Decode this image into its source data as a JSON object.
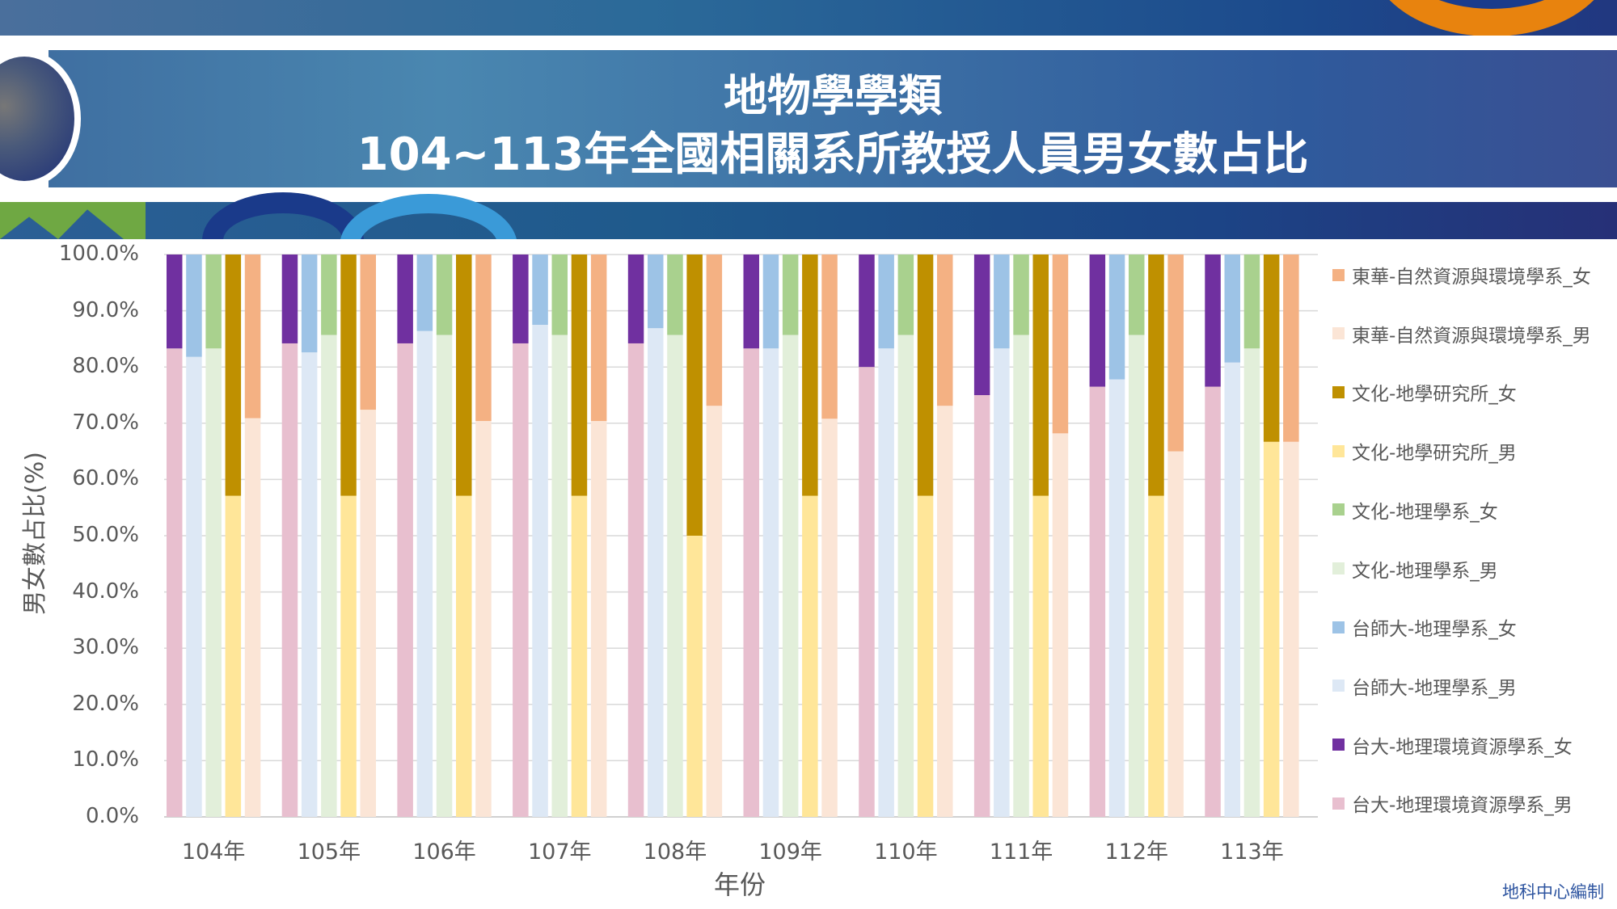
{
  "banner": {
    "title_line1": "地物學學類",
    "title_line2": "104~113年全國相關系所教授人員男女數占比"
  },
  "credit": "地科中心編制",
  "chart_data": {
    "type": "bar",
    "stacked": "percent",
    "title": "地物學學類 104~113年全國相關系所教授人員男女數占比",
    "xlabel": "年份",
    "ylabel": "男女數占比(%)",
    "ylim": [
      0,
      100
    ],
    "yticks": [
      "0.0%",
      "10.0%",
      "20.0%",
      "30.0%",
      "40.0%",
      "50.0%",
      "60.0%",
      "70.0%",
      "80.0%",
      "90.0%",
      "100.0%"
    ],
    "grid": true,
    "legend_position": "right",
    "categories": [
      "104年",
      "105年",
      "106年",
      "107年",
      "108年",
      "109年",
      "110年",
      "111年",
      "112年",
      "113年"
    ],
    "groups": [
      {
        "name": "台大-地理環境資源學系",
        "series": [
          {
            "name": "台大-地理環境資源學系_男",
            "color": "#e8bfcf",
            "values": [
              83.3,
              84.2,
              84.2,
              84.2,
              84.2,
              83.3,
              80.0,
              75.0,
              76.5,
              76.5
            ]
          },
          {
            "name": "台大-地理環境資源學系_女",
            "color": "#7030a0",
            "values": [
              16.7,
              15.8,
              15.8,
              15.8,
              15.8,
              16.7,
              20.0,
              25.0,
              23.5,
              23.5
            ]
          }
        ]
      },
      {
        "name": "台師大-地理學系",
        "series": [
          {
            "name": "台師大-地理學系_男",
            "color": "#dde8f5",
            "values": [
              81.8,
              82.6,
              86.4,
              87.5,
              86.9,
              83.3,
              83.3,
              83.3,
              77.8,
              80.8
            ]
          },
          {
            "name": "台師大-地理學系_女",
            "color": "#9dc3e6",
            "values": [
              18.2,
              17.4,
              13.6,
              12.5,
              13.1,
              16.7,
              16.7,
              16.7,
              22.2,
              19.2
            ]
          }
        ]
      },
      {
        "name": "文化-地理學系",
        "series": [
          {
            "name": "文化-地理學系_男",
            "color": "#e2efda",
            "values": [
              83.3,
              85.7,
              85.7,
              85.7,
              85.7,
              85.7,
              85.7,
              85.7,
              85.7,
              83.3
            ]
          },
          {
            "name": "文化-地理學系_女",
            "color": "#a9d18e",
            "values": [
              16.7,
              14.3,
              14.3,
              14.3,
              14.3,
              14.3,
              14.3,
              14.3,
              14.3,
              16.7
            ]
          }
        ]
      },
      {
        "name": "文化-地學研究所",
        "series": [
          {
            "name": "文化-地學研究所_男",
            "color": "#ffe699",
            "values": [
              57.1,
              57.1,
              57.1,
              57.1,
              50.0,
              57.1,
              57.1,
              57.1,
              57.1,
              66.7
            ]
          },
          {
            "name": "文化-地學研究所_女",
            "color": "#bf9000",
            "values": [
              42.9,
              42.9,
              42.9,
              42.9,
              50.0,
              42.9,
              42.9,
              42.9,
              42.9,
              33.3
            ]
          }
        ]
      },
      {
        "name": "東華-自然資源與環境學系",
        "series": [
          {
            "name": "東華-自然資源與環境學系_男",
            "color": "#fbe5d6",
            "values": [
              70.9,
              72.4,
              70.4,
              70.4,
              73.1,
              70.8,
              73.1,
              68.2,
              65.0,
              66.7
            ]
          },
          {
            "name": "東華-自然資源與環境學系_女",
            "color": "#f4b183",
            "values": [
              29.1,
              27.6,
              29.6,
              29.6,
              26.9,
              29.2,
              26.9,
              31.8,
              35.0,
              33.3
            ]
          }
        ]
      }
    ],
    "legend": [
      {
        "label": "東華-自然資源與環境學系_女",
        "color": "#f4b183"
      },
      {
        "label": "東華-自然資源與環境學系_男",
        "color": "#fbe5d6"
      },
      {
        "label": "文化-地學研究所_女",
        "color": "#bf9000"
      },
      {
        "label": "文化-地學研究所_男",
        "color": "#ffe699"
      },
      {
        "label": "文化-地理學系_女",
        "color": "#a9d18e"
      },
      {
        "label": "文化-地理學系_男",
        "color": "#e2efda"
      },
      {
        "label": "台師大-地理學系_女",
        "color": "#9dc3e6"
      },
      {
        "label": "台師大-地理學系_男",
        "color": "#dde8f5"
      },
      {
        "label": "台大-地理環境資源學系_女",
        "color": "#7030a0"
      },
      {
        "label": "台大-地理環境資源學系_男",
        "color": "#e8bfcf"
      }
    ]
  }
}
